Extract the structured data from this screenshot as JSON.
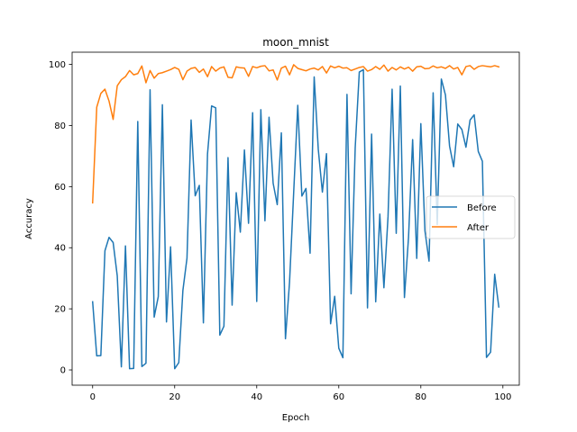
{
  "chart_data": {
    "type": "line",
    "title": "moon_mnist",
    "xlabel": "Epoch",
    "ylabel": "Accuracy",
    "xlim": [
      -5,
      104
    ],
    "ylim": [
      -5,
      104
    ],
    "xticks": [
      0,
      20,
      40,
      60,
      80,
      100
    ],
    "yticks": [
      0,
      20,
      40,
      60,
      80,
      100
    ],
    "grid": false,
    "legend_position": "center-right",
    "series": [
      {
        "name": "Before",
        "color": "#1f77b4",
        "x": [
          0,
          1,
          2,
          3,
          4,
          5,
          6,
          7,
          8,
          9,
          10,
          11,
          12,
          13,
          14,
          15,
          16,
          17,
          18,
          19,
          20,
          21,
          22,
          23,
          24,
          25,
          26,
          27,
          28,
          29,
          30,
          31,
          32,
          33,
          34,
          35,
          36,
          37,
          38,
          39,
          40,
          41,
          42,
          43,
          44,
          45,
          46,
          47,
          48,
          49,
          50,
          51,
          52,
          53,
          54,
          55,
          56,
          57,
          58,
          59,
          60,
          61,
          62,
          63,
          64,
          65,
          66,
          67,
          68,
          69,
          70,
          71,
          72,
          73,
          74,
          75,
          76,
          77,
          78,
          79,
          80,
          81,
          82,
          83,
          84,
          85,
          86,
          87,
          88,
          89,
          90,
          91,
          92,
          93,
          94,
          95,
          96,
          97,
          98,
          99
        ],
        "values": [
          22.3,
          4.6,
          4.7,
          39,
          43.4,
          41.7,
          30.8,
          1,
          40.6,
          0.4,
          0.5,
          81.3,
          1.1,
          2.2,
          91.7,
          17.3,
          24,
          86.8,
          15.7,
          40.3,
          0.4,
          2.4,
          26,
          36.6,
          81.8,
          57,
          60.4,
          15.4,
          70.7,
          86.4,
          85.8,
          11.4,
          14.3,
          69.5,
          21.2,
          58,
          45.1,
          72,
          48,
          84.2,
          22.4,
          85.2,
          48.8,
          82.7,
          61.1,
          54.1,
          77.6,
          10.2,
          28.8,
          57.9,
          86.6,
          56.9,
          59.4,
          38.2,
          95.9,
          72.2,
          58.2,
          70.8,
          15.1,
          24.1,
          7.1,
          4,
          90.2,
          24.9,
          72.7,
          97.5,
          98.3,
          20.3,
          77.2,
          22.3,
          51,
          26.9,
          50.1,
          91.9,
          44.7,
          92.9,
          23.7,
          43.4,
          75.4,
          36.5,
          80.6,
          45.5,
          35.6,
          90.7,
          47.6,
          95.2,
          90,
          73.3,
          66.5,
          80.5,
          78.7,
          72.9,
          81.8,
          83.5,
          71.5,
          68.3,
          4.1,
          5.8,
          31.3,
          20.6
        ]
      },
      {
        "name": "After",
        "color": "#ff7f0e",
        "x": [
          0,
          1,
          2,
          3,
          4,
          5,
          6,
          7,
          8,
          9,
          10,
          11,
          12,
          13,
          14,
          15,
          16,
          17,
          18,
          19,
          20,
          21,
          22,
          23,
          24,
          25,
          26,
          27,
          28,
          29,
          30,
          31,
          32,
          33,
          34,
          35,
          36,
          37,
          38,
          39,
          40,
          41,
          42,
          43,
          44,
          45,
          46,
          47,
          48,
          49,
          50,
          51,
          52,
          53,
          54,
          55,
          56,
          57,
          58,
          59,
          60,
          61,
          62,
          63,
          64,
          65,
          66,
          67,
          68,
          69,
          70,
          71,
          72,
          73,
          74,
          75,
          76,
          77,
          78,
          79,
          80,
          81,
          82,
          83,
          84,
          85,
          86,
          87,
          88,
          89,
          90,
          91,
          92,
          93,
          94,
          95,
          96,
          97,
          98,
          99
        ],
        "values": [
          54.7,
          86,
          90.5,
          91.9,
          88,
          82,
          93,
          95,
          96,
          98,
          96.6,
          97,
          99.5,
          94,
          98,
          95.5,
          97,
          97.3,
          97.8,
          98.3,
          99,
          98.4,
          95,
          97.8,
          98.7,
          99,
          97.4,
          98.5,
          96,
          99.3,
          97.8,
          98.8,
          99.2,
          95.8,
          95.6,
          99.2,
          98.9,
          98.8,
          96.1,
          99.3,
          98.9,
          99.4,
          99.6,
          97.9,
          98.2,
          94.9,
          98.8,
          99.4,
          96.6,
          99.9,
          98.7,
          98.3,
          97.9,
          98.5,
          98.8,
          98.2,
          99.3,
          97.2,
          99.5,
          98.9,
          99.4,
          98.8,
          98.9,
          98,
          98.5,
          99,
          99.3,
          97.8,
          98.3,
          99.3,
          98.4,
          99.8,
          97.8,
          99,
          98.2,
          99.2,
          98.5,
          99.1,
          97.8,
          99.2,
          99.4,
          98.6,
          98.7,
          99.5,
          98.9,
          99.2,
          98.7,
          99.6,
          98.5,
          99,
          96.6,
          99.3,
          99.6,
          98.4,
          99.3,
          99.6,
          99.4,
          99.2,
          99.6,
          99.2
        ]
      }
    ]
  }
}
